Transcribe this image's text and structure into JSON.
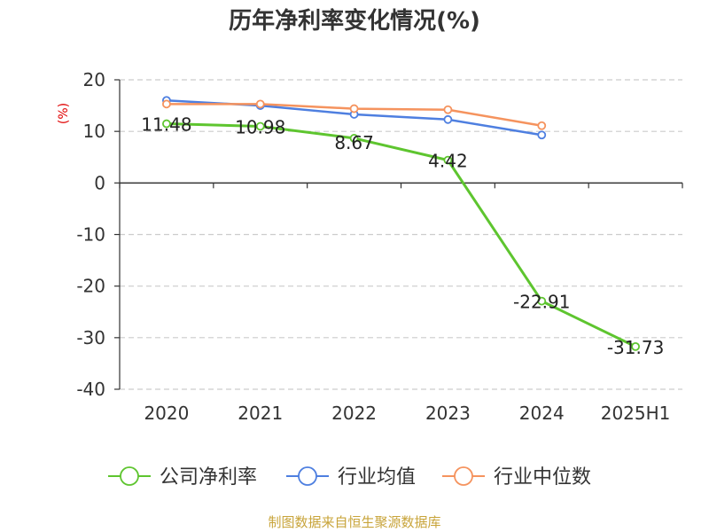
{
  "colors": {
    "company": "#5ec52f",
    "industry_avg": "#4e7fe0",
    "industry_median": "#f5935e",
    "grid": "#cccccc",
    "axis": "#333333",
    "unit": "#e00000",
    "source": "#c8a43a"
  },
  "source_text": "制图数据来自恒生聚源数据库",
  "chart_data": {
    "type": "line",
    "title": "历年净利率变化情况(%)",
    "ylabel": "(%)",
    "categories": [
      "2020",
      "2021",
      "2022",
      "2023",
      "2024",
      "2025H1"
    ],
    "ylim": [
      -40,
      20
    ],
    "yticks": [
      20,
      10,
      0,
      -10,
      -20,
      -30,
      -40
    ],
    "grid": true,
    "legend": "bottom",
    "series": [
      {
        "name": "公司净利率",
        "color_key": "company",
        "values": [
          11.48,
          10.98,
          8.67,
          4.42,
          -22.91,
          -31.73
        ],
        "labels": [
          "11.48",
          "10.98",
          "8.67",
          "4.42",
          "-22.91",
          "-31.73"
        ]
      },
      {
        "name": "行业均值",
        "color_key": "industry_avg",
        "values": [
          16.0,
          15.0,
          13.3,
          12.3,
          9.3,
          null
        ]
      },
      {
        "name": "行业中位数",
        "color_key": "industry_median",
        "values": [
          15.3,
          15.3,
          14.4,
          14.2,
          11.1,
          null
        ]
      }
    ]
  }
}
